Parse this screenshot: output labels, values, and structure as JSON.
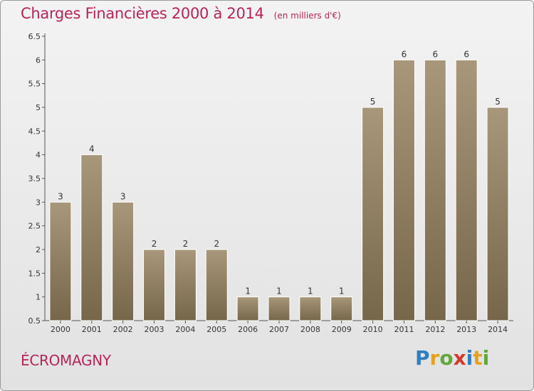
{
  "header": {
    "title": "Charges Financières 2000 à 2014",
    "subtitle": "(en milliers d'€)"
  },
  "footer": {
    "commune": "ÉCROMAGNY",
    "logo_text": "Proxiti",
    "logo_letters": [
      {
        "ch": "P",
        "color": "#2f7fc1"
      },
      {
        "ch": "r",
        "color": "#e8a020"
      },
      {
        "ch": "o",
        "color": "#62a83a"
      },
      {
        "ch": "x",
        "color": "#d23a2b"
      },
      {
        "ch": "i",
        "color": "#2f7fc1"
      },
      {
        "ch": "t",
        "color": "#e8a020"
      },
      {
        "ch": "i",
        "color": "#62a83a"
      }
    ]
  },
  "colors": {
    "accent": "#b5245a",
    "bar_light": "#a8977a",
    "bar_dark": "#76664a"
  },
  "chart_data": {
    "type": "bar",
    "categories": [
      "2000",
      "2001",
      "2002",
      "2003",
      "2004",
      "2005",
      "2006",
      "2007",
      "2008",
      "2009",
      "2010",
      "2011",
      "2012",
      "2013",
      "2014"
    ],
    "values": [
      3,
      4,
      3,
      2,
      2,
      2,
      1,
      1,
      1,
      1,
      5,
      6,
      6,
      6,
      5
    ],
    "data_labels": [
      "3",
      "4",
      "3",
      "2",
      "2",
      "2",
      "1",
      "1",
      "1",
      "1",
      "5",
      "6",
      "6",
      "6",
      "5"
    ],
    "ylim": [
      0.5,
      6.5
    ],
    "yticks": [
      0.5,
      1,
      1.5,
      2,
      2.5,
      3,
      3.5,
      4,
      4.5,
      5,
      5.5,
      6,
      6.5
    ],
    "ytick_labels": [
      "0.5",
      "1",
      "1.5",
      "2",
      "2.5",
      "3",
      "3.5",
      "4",
      "4.5",
      "5",
      "5.5",
      "6",
      "6.5"
    ],
    "grid": false,
    "legend": "none"
  }
}
